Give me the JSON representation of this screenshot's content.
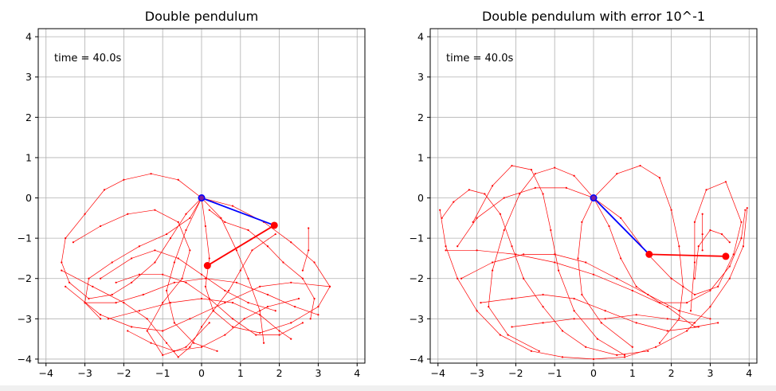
{
  "chart_data": [
    {
      "type": "line",
      "title": "Double pendulum",
      "annotation": "time = 40.0s",
      "xlim": [
        -4.2,
        4.2
      ],
      "ylim": [
        -4.1,
        4.2
      ],
      "xticks": [
        -4,
        -3,
        -2,
        -1,
        0,
        1,
        2,
        3,
        4
      ],
      "yticks": [
        -4,
        -3,
        -2,
        -1,
        0,
        1,
        2,
        3,
        4
      ],
      "grid": true,
      "colors": {
        "trace": "#ff0000",
        "rod1": "#0000ff",
        "rod2": "#ff0000",
        "pivot": "#0000ff",
        "bob": "#ff0000"
      },
      "pivot": [
        0,
        0
      ],
      "bob1": [
        1.87,
        -0.68
      ],
      "bob2": [
        0.15,
        -1.68
      ],
      "traces": [
        [
          [
            0,
            0
          ],
          [
            -0.6,
            0.45
          ],
          [
            -1.3,
            0.6
          ],
          [
            -2.0,
            0.45
          ],
          [
            -2.5,
            0.2
          ],
          [
            -3.0,
            -0.4
          ],
          [
            -3.5,
            -1.0
          ],
          [
            -3.6,
            -1.6
          ],
          [
            -3.4,
            -2.1
          ],
          [
            -2.9,
            -2.5
          ],
          [
            -2.3,
            -2.4
          ],
          [
            -1.8,
            -2.1
          ],
          [
            -1.2,
            -1.6
          ],
          [
            -0.8,
            -1.0
          ],
          [
            -0.4,
            -0.4
          ],
          [
            0,
            0
          ]
        ],
        [
          [
            0,
            0
          ],
          [
            0.8,
            -0.2
          ],
          [
            1.6,
            -0.6
          ],
          [
            2.3,
            -1.1
          ],
          [
            2.9,
            -1.6
          ],
          [
            3.3,
            -2.2
          ],
          [
            3.0,
            -2.7
          ],
          [
            2.3,
            -3.1
          ],
          [
            1.5,
            -3.35
          ],
          [
            0.8,
            -3.2
          ],
          [
            0.3,
            -2.8
          ],
          [
            0.1,
            -2.2
          ],
          [
            0.2,
            -1.5
          ],
          [
            0.1,
            -0.7
          ],
          [
            0,
            0
          ]
        ],
        [
          [
            -3.6,
            -1.8
          ],
          [
            -2.8,
            -2.2
          ],
          [
            -2.0,
            -2.6
          ],
          [
            -1.4,
            -3.0
          ],
          [
            -0.9,
            -3.6
          ],
          [
            -0.6,
            -3.95
          ],
          [
            -0.3,
            -3.7
          ],
          [
            0,
            -3.2
          ],
          [
            0.3,
            -2.8
          ],
          [
            0.7,
            -2.3
          ],
          [
            1.0,
            -1.8
          ],
          [
            1.3,
            -1.3
          ],
          [
            1.9,
            -0.9
          ]
        ],
        [
          [
            -3.5,
            -2.2
          ],
          [
            -2.6,
            -2.9
          ],
          [
            -1.8,
            -3.2
          ],
          [
            -1.0,
            -3.3
          ],
          [
            -0.3,
            -3.0
          ],
          [
            0.6,
            -2.6
          ],
          [
            1.5,
            -2.2
          ],
          [
            2.3,
            -2.1
          ],
          [
            3.3,
            -2.2
          ]
        ],
        [
          [
            -3.0,
            -2.6
          ],
          [
            -2.2,
            -2.6
          ],
          [
            -1.5,
            -2.4
          ],
          [
            -0.7,
            -2.1
          ],
          [
            0.1,
            -2.0
          ],
          [
            0.9,
            -2.1
          ],
          [
            1.7,
            -2.4
          ],
          [
            2.4,
            -2.7
          ],
          [
            3.0,
            -2.9
          ]
        ],
        [
          [
            -3.3,
            -1.1
          ],
          [
            -2.6,
            -0.7
          ],
          [
            -1.9,
            -0.4
          ],
          [
            -1.2,
            -0.3
          ],
          [
            -0.6,
            -0.6
          ],
          [
            -0.3,
            -1.3
          ],
          [
            -0.5,
            -2.0
          ],
          [
            -1.0,
            -2.6
          ],
          [
            -1.4,
            -3.3
          ],
          [
            -1.0,
            -3.9
          ],
          [
            -0.4,
            -3.7
          ],
          [
            0.2,
            -3.1
          ]
        ],
        [
          [
            0,
            0
          ],
          [
            -0.3,
            -0.5
          ],
          [
            -0.9,
            -0.9
          ],
          [
            -1.6,
            -1.2
          ],
          [
            -2.3,
            -1.6
          ],
          [
            -2.9,
            -2.0
          ],
          [
            -3.0,
            -2.6
          ],
          [
            -2.6,
            -3.0
          ]
        ],
        [
          [
            0,
            0
          ],
          [
            0.5,
            -0.5
          ],
          [
            0.9,
            -1.3
          ],
          [
            1.2,
            -2.0
          ],
          [
            1.5,
            -2.8
          ],
          [
            1.6,
            -3.6
          ]
        ],
        [
          [
            0.2,
            -0.3
          ],
          [
            0.6,
            -0.6
          ],
          [
            1.2,
            -0.8
          ],
          [
            1.7,
            -1.2
          ],
          [
            2.1,
            -1.6
          ],
          [
            2.6,
            -2.0
          ],
          [
            2.9,
            -2.5
          ],
          [
            2.8,
            -3.0
          ]
        ],
        [
          [
            -2.4,
            -3.0
          ],
          [
            -1.6,
            -2.8
          ],
          [
            -0.8,
            -2.6
          ],
          [
            0,
            -2.5
          ],
          [
            0.8,
            -2.6
          ],
          [
            1.5,
            -2.9
          ],
          [
            2.0,
            -3.3
          ],
          [
            2.3,
            -3.5
          ]
        ],
        [
          [
            -1.9,
            -3.3
          ],
          [
            -1.3,
            -3.6
          ],
          [
            -0.7,
            -3.8
          ],
          [
            0,
            -3.7
          ],
          [
            0.6,
            -3.4
          ],
          [
            1.1,
            -3.0
          ],
          [
            1.7,
            -2.7
          ],
          [
            2.5,
            -2.5
          ]
        ],
        [
          [
            -2.2,
            -2.1
          ],
          [
            -1.6,
            -1.9
          ],
          [
            -1.0,
            -1.9
          ],
          [
            -0.4,
            -2.1
          ],
          [
            0.2,
            -2.5
          ],
          [
            0.8,
            -3.0
          ],
          [
            1.4,
            -3.4
          ],
          [
            2.0,
            -3.4
          ],
          [
            2.6,
            -3.1
          ]
        ],
        [
          [
            0,
            0
          ],
          [
            -0.4,
            -0.8
          ],
          [
            -0.7,
            -1.6
          ],
          [
            -0.9,
            -2.3
          ],
          [
            -0.7,
            -3.1
          ],
          [
            -0.2,
            -3.6
          ],
          [
            0.4,
            -3.8
          ]
        ],
        [
          [
            2.75,
            -0.75
          ],
          [
            2.75,
            -1.3
          ],
          [
            2.6,
            -1.8
          ]
        ],
        [
          [
            -2.6,
            -2.0
          ],
          [
            -1.8,
            -1.5
          ],
          [
            -1.2,
            -1.3
          ],
          [
            -0.6,
            -1.5
          ],
          [
            0,
            -1.9
          ],
          [
            0.6,
            -2.3
          ],
          [
            1.2,
            -2.6
          ],
          [
            1.9,
            -2.8
          ]
        ]
      ]
    },
    {
      "type": "line",
      "title": "Double pendulum with error 10^-1",
      "annotation": "time = 40.0s",
      "xlim": [
        -4.2,
        4.2
      ],
      "ylim": [
        -4.1,
        4.2
      ],
      "xticks": [
        -4,
        -3,
        -2,
        -1,
        0,
        1,
        2,
        3,
        4
      ],
      "yticks": [
        -4,
        -3,
        -2,
        -1,
        0,
        1,
        2,
        3,
        4
      ],
      "grid": true,
      "colors": {
        "trace": "#ff0000",
        "rod1": "#0000ff",
        "rod2": "#ff0000",
        "pivot": "#0000ff",
        "bob": "#ff0000"
      },
      "pivot": [
        0,
        0
      ],
      "bob1": [
        1.43,
        -1.4
      ],
      "bob2": [
        3.4,
        -1.45
      ],
      "traces": [
        [
          [
            -3.95,
            -0.3
          ],
          [
            -3.8,
            -1.2
          ],
          [
            -3.5,
            -2.0
          ],
          [
            -3.0,
            -2.8
          ],
          [
            -2.4,
            -3.4
          ],
          [
            -1.6,
            -3.8
          ],
          [
            -0.8,
            -3.95
          ],
          [
            0,
            -4.0
          ],
          [
            0.8,
            -3.95
          ],
          [
            1.6,
            -3.7
          ],
          [
            2.4,
            -3.3
          ],
          [
            3.0,
            -2.7
          ],
          [
            3.5,
            -2.0
          ],
          [
            3.85,
            -1.2
          ],
          [
            3.95,
            -0.25
          ]
        ],
        [
          [
            -3.9,
            -0.5
          ],
          [
            -3.6,
            -0.1
          ],
          [
            -3.2,
            0.2
          ],
          [
            -2.8,
            0.1
          ],
          [
            -2.4,
            -0.4
          ],
          [
            -2.1,
            -1.2
          ],
          [
            -1.8,
            -2.0
          ],
          [
            -1.3,
            -2.7
          ],
          [
            -0.8,
            -3.3
          ],
          [
            -0.2,
            -3.7
          ],
          [
            0.6,
            -3.9
          ],
          [
            1.4,
            -3.8
          ]
        ],
        [
          [
            -3.1,
            -0.6
          ],
          [
            -2.6,
            0.3
          ],
          [
            -2.1,
            0.8
          ],
          [
            -1.6,
            0.7
          ],
          [
            -1.3,
            0.1
          ],
          [
            -1.1,
            -0.8
          ],
          [
            -0.9,
            -1.8
          ],
          [
            -0.5,
            -2.8
          ],
          [
            0.1,
            -3.5
          ],
          [
            0.8,
            -3.9
          ]
        ],
        [
          [
            0,
            0
          ],
          [
            -0.5,
            0.55
          ],
          [
            -1.0,
            0.75
          ],
          [
            -1.5,
            0.6
          ],
          [
            -1.9,
            0.1
          ],
          [
            -2.3,
            -0.8
          ],
          [
            -2.6,
            -1.8
          ],
          [
            -2.7,
            -2.7
          ],
          [
            -2.2,
            -3.4
          ],
          [
            -1.4,
            -3.8
          ]
        ],
        [
          [
            0,
            0
          ],
          [
            0.6,
            0.6
          ],
          [
            1.2,
            0.8
          ],
          [
            1.7,
            0.5
          ],
          [
            2.0,
            -0.3
          ],
          [
            2.2,
            -1.2
          ],
          [
            2.3,
            -2.2
          ],
          [
            2.2,
            -3.0
          ],
          [
            1.7,
            -3.6
          ]
        ],
        [
          [
            0,
            0
          ],
          [
            0.7,
            -0.5
          ],
          [
            1.4,
            -1.4
          ],
          [
            2.0,
            -2.0
          ],
          [
            2.6,
            -2.4
          ],
          [
            3.2,
            -2.2
          ],
          [
            3.6,
            -1.4
          ],
          [
            3.8,
            -0.6
          ],
          [
            3.4,
            0.4
          ],
          [
            2.9,
            0.2
          ],
          [
            2.6,
            -0.6
          ],
          [
            2.6,
            -1.6
          ],
          [
            2.5,
            -2.8
          ]
        ],
        [
          [
            -3.8,
            -1.3
          ],
          [
            -3.0,
            -1.3
          ],
          [
            -2.0,
            -1.4
          ],
          [
            -1.0,
            -1.6
          ],
          [
            0,
            -1.9
          ],
          [
            1.0,
            -2.3
          ],
          [
            1.9,
            -2.7
          ],
          [
            2.6,
            -3.2
          ],
          [
            3.2,
            -3.1
          ]
        ],
        [
          [
            -3.4,
            -2.0
          ],
          [
            -2.6,
            -1.6
          ],
          [
            -1.8,
            -1.4
          ],
          [
            -1.0,
            -1.4
          ],
          [
            -0.2,
            -1.6
          ],
          [
            0.6,
            -2.0
          ],
          [
            1.4,
            -2.4
          ],
          [
            2.2,
            -2.8
          ],
          [
            3.0,
            -3.0
          ]
        ],
        [
          [
            -2.9,
            -2.6
          ],
          [
            -2.1,
            -2.5
          ],
          [
            -1.3,
            -2.4
          ],
          [
            -0.5,
            -2.5
          ],
          [
            0.3,
            -2.8
          ],
          [
            1.1,
            -3.1
          ],
          [
            1.9,
            -3.3
          ],
          [
            2.7,
            -3.2
          ]
        ],
        [
          [
            0,
            0
          ],
          [
            -0.7,
            0.25
          ],
          [
            -1.5,
            0.25
          ],
          [
            -2.3,
            0.0
          ],
          [
            -3.0,
            -0.5
          ],
          [
            -3.5,
            -1.2
          ]
        ],
        [
          [
            -2.1,
            -3.2
          ],
          [
            -1.3,
            -3.1
          ],
          [
            -0.5,
            -3.0
          ],
          [
            0.3,
            -3.0
          ],
          [
            1.1,
            -2.9
          ],
          [
            1.9,
            -3.0
          ],
          [
            2.6,
            -3.1
          ]
        ],
        [
          [
            3.5,
            -1.1
          ],
          [
            3.3,
            -0.9
          ],
          [
            3.0,
            -0.8
          ],
          [
            2.7,
            -1.2
          ],
          [
            2.6,
            -2.0
          ]
        ],
        [
          [
            0,
            0
          ],
          [
            -0.3,
            -0.6
          ],
          [
            -0.4,
            -1.5
          ],
          [
            -0.3,
            -2.4
          ],
          [
            0.2,
            -3.1
          ],
          [
            1.0,
            -3.7
          ]
        ],
        [
          [
            2.8,
            -0.4
          ],
          [
            2.8,
            -0.9
          ],
          [
            2.8,
            -1.3
          ]
        ],
        [
          [
            0,
            0
          ],
          [
            0.4,
            -0.7
          ],
          [
            0.7,
            -1.5
          ],
          [
            1.1,
            -2.2
          ],
          [
            1.7,
            -2.6
          ],
          [
            2.4,
            -2.6
          ],
          [
            3.0,
            -2.3
          ],
          [
            3.5,
            -1.7
          ],
          [
            3.8,
            -1.0
          ],
          [
            3.9,
            -0.3
          ]
        ]
      ]
    }
  ]
}
